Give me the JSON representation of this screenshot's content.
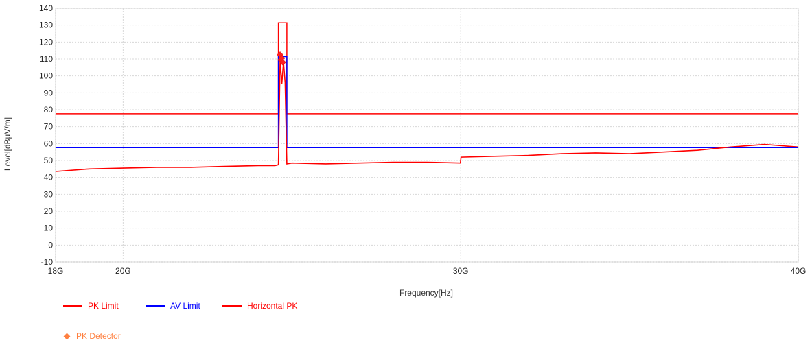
{
  "chart_data": {
    "type": "line",
    "title": "",
    "xlabel": "Frequency[Hz]",
    "ylabel": "Level[dBµV/m]",
    "ylim": [
      -10,
      140
    ],
    "yticks": [
      -10,
      0,
      10,
      20,
      30,
      40,
      50,
      60,
      70,
      80,
      90,
      100,
      110,
      120,
      130,
      140
    ],
    "xlim": [
      18000000000,
      40000000000
    ],
    "xticks": [
      {
        "value": 18000000000,
        "label": "18G"
      },
      {
        "value": 20000000000,
        "label": "20G"
      },
      {
        "value": 30000000000,
        "label": "30G"
      },
      {
        "value": 40000000000,
        "label": "40G"
      }
    ],
    "grid": true,
    "legend_position": "bottom-left",
    "series": [
      {
        "name": "PK Limit",
        "color": "#ff0000",
        "x": [
          18000000000,
          24600000000,
          24600000000,
          24850000000,
          24850000000,
          40000000000
        ],
        "y": [
          77.6,
          77.6,
          131.4,
          131.4,
          77.6,
          77.6
        ]
      },
      {
        "name": "AV Limit",
        "color": "#0000ff",
        "x": [
          18000000000,
          24600000000,
          24600000000,
          24850000000,
          24850000000,
          40000000000
        ],
        "y": [
          57.6,
          57.6,
          111.4,
          111.4,
          57.6,
          57.6
        ]
      },
      {
        "name": "Horizontal PK",
        "color": "#ff0000",
        "x": [
          18000000000,
          19000000000,
          20000000000,
          21000000000,
          22000000000,
          23000000000,
          24000000000,
          24500000000,
          24600000000,
          24650000000,
          24700000000,
          24750000000,
          24800000000,
          24850000000,
          25000000000,
          26000000000,
          27000000000,
          28000000000,
          29000000000,
          29990000000,
          30010000000,
          31000000000,
          32000000000,
          33000000000,
          34000000000,
          35000000000,
          36000000000,
          37000000000,
          38000000000,
          39000000000,
          40000000000
        ],
        "y": [
          43.5,
          45,
          45.5,
          46,
          46,
          46.5,
          47,
          47,
          47.5,
          110,
          95,
          108,
          96,
          48,
          48.5,
          48,
          48.5,
          49,
          49,
          48.5,
          52,
          52.5,
          53,
          54,
          54.5,
          54,
          55,
          56,
          58,
          59.5,
          58
        ]
      }
    ],
    "markers": {
      "name": "PK Detector",
      "color": "#ff8040",
      "points": [
        {
          "x": 24650000000,
          "y": 112.5
        },
        {
          "x": 24670000000,
          "y": 109.5
        },
        {
          "x": 24700000000,
          "y": 110.5
        },
        {
          "x": 24730000000,
          "y": 108
        }
      ]
    }
  },
  "legend": {
    "pk_limit": "PK Limit",
    "av_limit": "AV Limit",
    "horizontal_pk": "Horizontal PK",
    "pk_detector": "PK Detector"
  }
}
